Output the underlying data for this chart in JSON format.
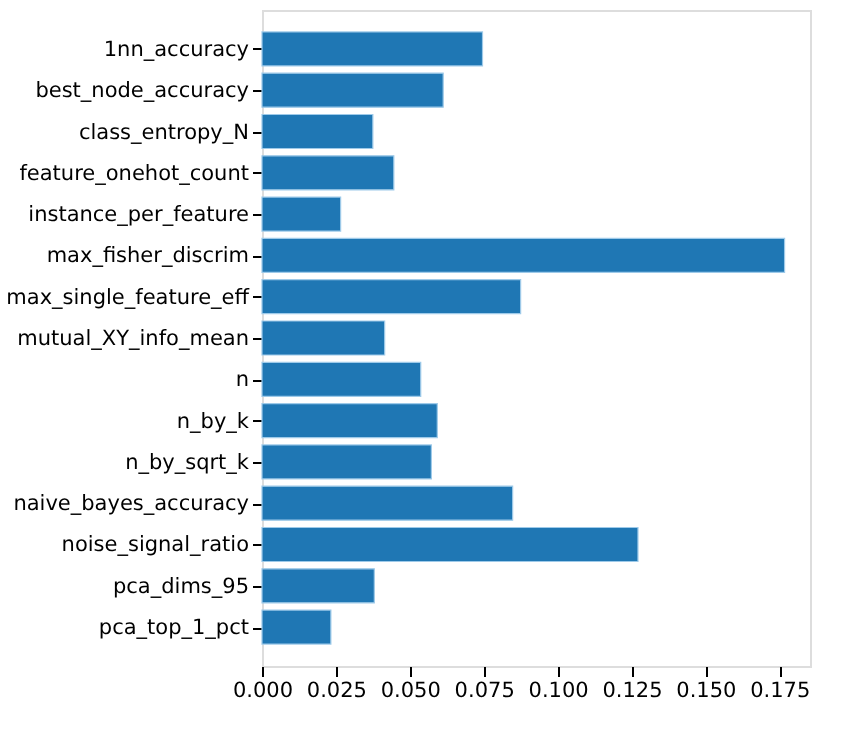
{
  "chart_data": {
    "type": "bar",
    "orientation": "horizontal",
    "categories": [
      "1nn_accuracy",
      "best_node_accuracy",
      "class_entropy_N",
      "feature_onehot_count",
      "instance_per_feature",
      "max_fisher_discrim",
      "max_single_feature_eff",
      "mutual_XY_info_mean",
      "n",
      "n_by_k",
      "n_by_sqrt_k",
      "naive_bayes_accuracy",
      "noise_signal_ratio",
      "pca_dims_95",
      "pca_top_1_pct"
    ],
    "values": [
      0.0746,
      0.0613,
      0.0375,
      0.0446,
      0.0266,
      0.1768,
      0.0875,
      0.0415,
      0.0537,
      0.0593,
      0.0573,
      0.0848,
      0.1272,
      0.038,
      0.0233
    ],
    "color": "#1f77b4",
    "xlim": [
      0,
      0.1854
    ],
    "xticks": [
      {
        "value": 0,
        "label": "0.000"
      },
      {
        "value": 0.025,
        "label": "0.025"
      },
      {
        "value": 0.05,
        "label": "0.050"
      },
      {
        "value": 0.075,
        "label": "0.075"
      },
      {
        "value": 0.1,
        "label": "0.100"
      },
      {
        "value": 0.125,
        "label": "0.125"
      },
      {
        "value": 0.15,
        "label": "0.150"
      },
      {
        "value": 0.175,
        "label": "0.175"
      }
    ],
    "grid": false
  }
}
